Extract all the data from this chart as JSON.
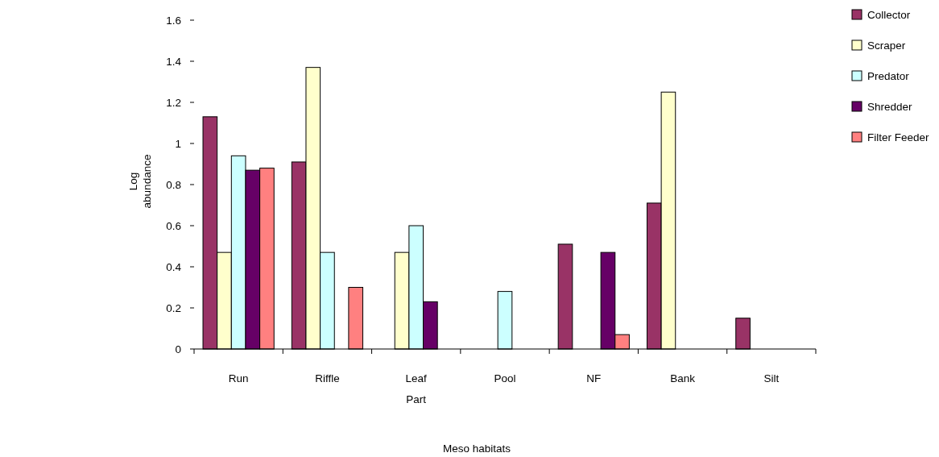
{
  "chart_data": {
    "type": "bar",
    "xlabel": "Meso habitats",
    "ylabel": "Log abundance",
    "categories": [
      "Run",
      "Riffle",
      "Leaf Part",
      "Pool",
      "NF",
      "Bank",
      "Silt"
    ],
    "series": [
      {
        "name": "Collector",
        "color": "#993366",
        "values": [
          1.13,
          0.91,
          null,
          null,
          0.51,
          0.71,
          0.15
        ]
      },
      {
        "name": "Scraper",
        "color": "#ffffcc",
        "values": [
          0.47,
          1.37,
          0.47,
          null,
          null,
          1.25,
          null
        ]
      },
      {
        "name": "Predator",
        "color": "#ccffff",
        "values": [
          0.94,
          0.47,
          0.6,
          0.28,
          null,
          null,
          null
        ]
      },
      {
        "name": "Shredder",
        "color": "#660066",
        "values": [
          0.87,
          null,
          0.23,
          null,
          0.47,
          null,
          null
        ]
      },
      {
        "name": "Filter Feeder",
        "color": "#ff8080",
        "values": [
          0.88,
          0.3,
          null,
          null,
          0.07,
          null,
          null
        ]
      }
    ],
    "ylim": [
      0,
      1.6
    ],
    "yticks": [
      0,
      0.2,
      0.4,
      0.6,
      0.8,
      1,
      1.2,
      1.4,
      1.6
    ],
    "grid": false,
    "legend": "right"
  }
}
